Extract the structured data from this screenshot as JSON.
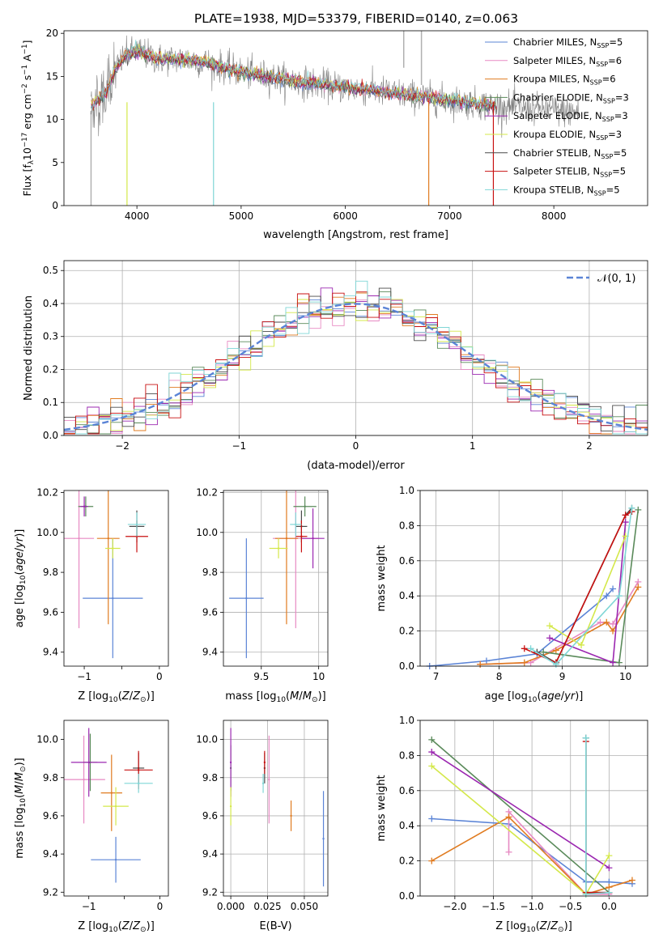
{
  "figure_title": "PLATE=1938, MJD=53379, FIBERID=0140, z=0.063",
  "colors": {
    "blue": "#5b84d6",
    "pink": "#e78ac3",
    "orange": "#e07b20",
    "green": "#5a8a5a",
    "purple": "#9b27b0",
    "lime": "#d4e84a",
    "dark": "#4a4a4a",
    "red": "#c81010",
    "cyan": "#7fd6d6",
    "data": "#808080",
    "normal": "#5b84d6"
  },
  "chart_data": [
    {
      "id": "spectrum",
      "type": "line",
      "xlabel": "wavelength [Angstrom, rest frame]",
      "ylabel": "Flux [fλ10⁻¹⁷ erg cm⁻² s⁻¹ A⁻¹]",
      "xlim": [
        3300,
        8900
      ],
      "ylim": [
        0,
        20.3
      ],
      "xticks": [
        4000,
        5000,
        6000,
        7000,
        8000
      ],
      "yticks": [
        0,
        5,
        10,
        15,
        20
      ],
      "grid": false,
      "legend_position": "top-right",
      "legend": [
        {
          "name": "Chabrier MILES, N_SSP=5",
          "color": "#5b84d6"
        },
        {
          "name": "Salpeter MILES, N_SSP=6",
          "color": "#e78ac3"
        },
        {
          "name": "Kroupa MILES, N_SSP=6",
          "color": "#e07b20"
        },
        {
          "name": "Chabrier ELODIE, N_SSP=3",
          "color": "#5a8a5a"
        },
        {
          "name": "Salpeter ELODIE, N_SSP=3",
          "color": "#9b27b0"
        },
        {
          "name": "Kroupa ELODIE, N_SSP=3",
          "color": "#d4e84a"
        },
        {
          "name": "Chabrier STELIB, N_SSP=5",
          "color": "#4a4a4a"
        },
        {
          "name": "Salpeter STELIB, N_SSP=5",
          "color": "#c81010"
        },
        {
          "name": "Kroupa STELIB, N_SSP=5",
          "color": "#7fd6d6"
        }
      ],
      "continuum": [
        [
          3560,
          11.5
        ],
        [
          3700,
          13
        ],
        [
          3800,
          16
        ],
        [
          3900,
          17.5
        ],
        [
          4000,
          18
        ],
        [
          4100,
          17.5
        ],
        [
          4200,
          17
        ],
        [
          4300,
          17
        ],
        [
          4500,
          17
        ],
        [
          4700,
          16.5
        ],
        [
          5000,
          15.5
        ],
        [
          5500,
          14.5
        ],
        [
          6000,
          13.7
        ],
        [
          6500,
          13
        ],
        [
          7000,
          12.2
        ],
        [
          7500,
          11.5
        ],
        [
          8000,
          11.1
        ],
        [
          8250,
          10.8
        ]
      ]
    },
    {
      "id": "residuals",
      "type": "line",
      "xlabel": "(data-model)/error",
      "ylabel": "Normed distribution",
      "xlim": [
        -2.5,
        2.5
      ],
      "ylim": [
        0,
        0.53
      ],
      "xticks": [
        -2,
        -1,
        0,
        1,
        2
      ],
      "yticks": [
        0.0,
        0.1,
        0.2,
        0.3,
        0.4,
        0.5
      ],
      "grid": true,
      "legend_position": "top-right",
      "legend": [
        {
          "name": "𝒩(0, 1)",
          "color": "#5b84d6"
        }
      ],
      "normal": {
        "mean": 0,
        "sigma": 1
      }
    },
    {
      "id": "age_vs_Z",
      "type": "scatter",
      "xlabel": "Z [log₁₀(Z/Z⊙)]",
      "ylabel": "age  [log₁₀(age/yr)]",
      "xlim": [
        -1.27,
        0.12
      ],
      "ylim": [
        9.33,
        10.21
      ],
      "xticks": [
        -1,
        -0.5,
        0
      ],
      "xticklabels": [
        "−1",
        "",
        "0"
      ],
      "yticks": [
        9.4,
        9.6,
        9.8,
        10.0,
        10.2
      ],
      "grid": false,
      "points": [
        {
          "series": "Chabrier MILES",
          "x": -0.62,
          "y": 9.67,
          "xerr": 0.4,
          "yerr": 0.3,
          "color": "#5b84d6"
        },
        {
          "series": "Salpeter MILES",
          "x": -1.07,
          "y": 9.97,
          "xerr": 0.2,
          "yerr": 0.45,
          "color": "#e78ac3"
        },
        {
          "series": "Kroupa MILES",
          "x": -0.68,
          "y": 9.97,
          "xerr": 0.15,
          "yerr": 0.43,
          "color": "#e07b20"
        },
        {
          "series": "Chabrier ELODIE",
          "x": -0.98,
          "y": 10.13,
          "xerr": 0.1,
          "yerr": 0.05,
          "color": "#5a8a5a"
        },
        {
          "series": "Salpeter ELODIE",
          "x": -1.0,
          "y": 10.13,
          "xerr": 0.05,
          "yerr": 0.05,
          "color": "#9b27b0"
        },
        {
          "series": "Kroupa ELODIE",
          "x": -0.62,
          "y": 9.92,
          "xerr": 0.1,
          "yerr": 0.05,
          "color": "#d4e84a"
        },
        {
          "series": "Chabrier STELIB",
          "x": -0.3,
          "y": 10.03,
          "xerr": 0.1,
          "yerr": 0.08,
          "color": "#4a4a4a"
        },
        {
          "series": "Salpeter STELIB",
          "x": -0.3,
          "y": 9.98,
          "xerr": 0.15,
          "yerr": 0.08,
          "color": "#c81010"
        },
        {
          "series": "Kroupa STELIB",
          "x": -0.3,
          "y": 10.04,
          "xerr": 0.12,
          "yerr": 0.06,
          "color": "#7fd6d6"
        }
      ]
    },
    {
      "id": "age_vs_mass",
      "type": "scatter",
      "xlabel": "mass [log₁₀(M/M⊙)]",
      "xlim": [
        9.17,
        10.08
      ],
      "ylim": [
        9.33,
        10.21
      ],
      "xticks": [
        9.5,
        10.0
      ],
      "yticks": [
        9.4,
        9.6,
        9.8,
        10.0,
        10.2
      ],
      "grid": true,
      "points": [
        {
          "series": "Chabrier MILES",
          "x": 9.37,
          "y": 9.67,
          "xerr": 0.15,
          "yerr": 0.3,
          "color": "#5b84d6"
        },
        {
          "series": "Salpeter MILES",
          "x": 9.8,
          "y": 9.97,
          "xerr": 0.2,
          "yerr": 0.45,
          "color": "#e78ac3"
        },
        {
          "series": "Kroupa MILES",
          "x": 9.72,
          "y": 9.97,
          "xerr": 0.1,
          "yerr": 0.43,
          "color": "#e07b20"
        },
        {
          "series": "Chabrier ELODIE",
          "x": 9.88,
          "y": 10.13,
          "xerr": 0.1,
          "yerr": 0.05,
          "color": "#5a8a5a"
        },
        {
          "series": "Salpeter ELODIE",
          "x": 9.95,
          "y": 9.97,
          "xerr": 0.1,
          "yerr": 0.15,
          "color": "#9b27b0"
        },
        {
          "series": "Kroupa ELODIE",
          "x": 9.65,
          "y": 9.92,
          "xerr": 0.08,
          "yerr": 0.05,
          "color": "#d4e84a"
        },
        {
          "series": "Chabrier STELIB",
          "x": 9.85,
          "y": 10.03,
          "xerr": 0.05,
          "yerr": 0.08,
          "color": "#4a4a4a"
        },
        {
          "series": "Salpeter STELIB",
          "x": 9.85,
          "y": 9.98,
          "xerr": 0.05,
          "yerr": 0.08,
          "color": "#c81010"
        },
        {
          "series": "Kroupa STELIB",
          "x": 9.8,
          "y": 10.04,
          "xerr": 0.05,
          "yerr": 0.06,
          "color": "#7fd6d6"
        }
      ]
    },
    {
      "id": "weight_vs_age",
      "type": "line",
      "xlabel": "age  [log₁₀(age/yr)]",
      "ylabel": "mass weight",
      "xlim": [
        6.75,
        10.35
      ],
      "ylim": [
        0,
        1
      ],
      "xticks": [
        7,
        8,
        9,
        10
      ],
      "yticks": [
        0.0,
        0.2,
        0.4,
        0.6,
        0.8,
        1.0
      ],
      "grid": true,
      "series": [
        {
          "name": "Chabrier MILES",
          "color": "#5b84d6",
          "x": [
            6.9,
            7.8,
            8.6,
            9.7,
            9.8
          ],
          "y": [
            0.0,
            0.03,
            0.07,
            0.4,
            0.44
          ]
        },
        {
          "name": "Salpeter MILES",
          "color": "#e78ac3",
          "x": [
            7.7,
            8.5,
            9.6,
            9.8,
            10.2
          ],
          "y": [
            0.01,
            0.02,
            0.25,
            0.24,
            0.48
          ]
        },
        {
          "name": "Kroupa MILES",
          "color": "#e07b20",
          "x": [
            7.7,
            8.4,
            8.9,
            9.7,
            9.8,
            10.2
          ],
          "y": [
            0.01,
            0.02,
            0.09,
            0.25,
            0.2,
            0.45
          ]
        },
        {
          "name": "Chabrier ELODIE",
          "color": "#5a8a5a",
          "x": [
            8.7,
            9.9,
            10.2
          ],
          "y": [
            0.08,
            0.02,
            0.89
          ]
        },
        {
          "name": "Salpeter ELODIE",
          "color": "#9b27b0",
          "x": [
            8.8,
            9.8,
            10.0
          ],
          "y": [
            0.16,
            0.02,
            0.82
          ]
        },
        {
          "name": "Kroupa ELODIE",
          "color": "#d4e84a",
          "x": [
            8.8,
            9.3,
            10.0
          ],
          "y": [
            0.23,
            0.12,
            0.74
          ]
        },
        {
          "name": "Chabrier STELIB",
          "color": "#4a4a4a",
          "x": [
            8.6,
            8.9,
            10.0,
            10.1
          ],
          "y": [
            0.08,
            0.02,
            0.86,
            0.9
          ]
        },
        {
          "name": "Salpeter STELIB",
          "color": "#c81010",
          "x": [
            8.4,
            8.9,
            10.0,
            10.1
          ],
          "y": [
            0.1,
            0.02,
            0.86,
            0.88
          ]
        },
        {
          "name": "Kroupa STELIB",
          "color": "#7fd6d6",
          "x": [
            8.5,
            8.9,
            9.9,
            10.1
          ],
          "y": [
            0.1,
            0.01,
            0.4,
            0.9
          ]
        }
      ]
    },
    {
      "id": "mass_vs_Z",
      "type": "scatter",
      "xlabel": "Z [log₁₀(Z/Z⊙)]",
      "ylabel": "mass [log₁₀(M/M⊙)]",
      "xlim": [
        -1.35,
        0.12
      ],
      "ylim": [
        9.18,
        10.1
      ],
      "xticks": [
        -1,
        -0.5,
        0
      ],
      "xticklabels": [
        "−1",
        "",
        "0"
      ],
      "yticks": [
        9.2,
        9.4,
        9.6,
        9.8,
        10.0
      ],
      "grid": false,
      "points": [
        {
          "series": "Chabrier MILES",
          "x": -0.62,
          "y": 9.37,
          "xerr": 0.35,
          "yerr": 0.12,
          "color": "#5b84d6"
        },
        {
          "series": "Salpeter MILES",
          "x": -1.07,
          "y": 9.79,
          "xerr": 0.3,
          "yerr": 0.23,
          "color": "#e78ac3"
        },
        {
          "series": "Kroupa MILES",
          "x": -0.68,
          "y": 9.72,
          "xerr": 0.15,
          "yerr": 0.2,
          "color": "#e07b20"
        },
        {
          "series": "Chabrier ELODIE",
          "x": -0.98,
          "y": 9.88,
          "xerr": 0.1,
          "yerr": 0.15,
          "color": "#5a8a5a"
        },
        {
          "series": "Salpeter ELODIE",
          "x": -1.0,
          "y": 9.88,
          "xerr": 0.25,
          "yerr": 0.18,
          "color": "#9b27b0"
        },
        {
          "series": "Kroupa ELODIE",
          "x": -0.62,
          "y": 9.65,
          "xerr": 0.18,
          "yerr": 0.1,
          "color": "#d4e84a"
        },
        {
          "series": "Chabrier STELIB",
          "x": -0.3,
          "y": 9.85,
          "xerr": 0.08,
          "yerr": 0.08,
          "color": "#4a4a4a"
        },
        {
          "series": "Salpeter STELIB",
          "x": -0.3,
          "y": 9.84,
          "xerr": 0.2,
          "yerr": 0.1,
          "color": "#c81010"
        },
        {
          "series": "Kroupa STELIB",
          "x": -0.3,
          "y": 9.77,
          "xerr": 0.2,
          "yerr": 0.05,
          "color": "#7fd6d6"
        }
      ]
    },
    {
      "id": "mass_vs_EBV",
      "type": "scatter",
      "xlabel": "E(B-V)",
      "xlim": [
        -0.005,
        0.066
      ],
      "ylim": [
        9.18,
        10.1
      ],
      "xticks": [
        0.0,
        0.025,
        0.05
      ],
      "xticklabels": [
        "0.000",
        "0.025",
        "0.050"
      ],
      "yticks": [
        9.2,
        9.4,
        9.6,
        9.8,
        10.0
      ],
      "grid": true,
      "points": [
        {
          "series": "Chabrier MILES",
          "x": 0.063,
          "y": 9.48,
          "xerr": 0,
          "yerr": 0.25,
          "color": "#5b84d6"
        },
        {
          "series": "Salpeter MILES",
          "x": 0.026,
          "y": 9.79,
          "xerr": 0,
          "yerr": 0.23,
          "color": "#e78ac3"
        },
        {
          "series": "Kroupa MILES",
          "x": 0.041,
          "y": 9.6,
          "xerr": 0,
          "yerr": 0.08,
          "color": "#e07b20"
        },
        {
          "series": "Chabrier ELODIE",
          "x": 0.0,
          "y": 9.85,
          "xerr": 0,
          "yerr": 0.12,
          "color": "#5a8a5a"
        },
        {
          "series": "Salpeter ELODIE",
          "x": 0.0,
          "y": 9.88,
          "xerr": 0,
          "yerr": 0.18,
          "color": "#9b27b0"
        },
        {
          "series": "Kroupa ELODIE",
          "x": 0.0,
          "y": 9.65,
          "xerr": 0,
          "yerr": 0.1,
          "color": "#d4e84a"
        },
        {
          "series": "Chabrier STELIB",
          "x": 0.023,
          "y": 9.85,
          "xerr": 0,
          "yerr": 0.08,
          "color": "#4a4a4a"
        },
        {
          "series": "Salpeter STELIB",
          "x": 0.023,
          "y": 9.88,
          "xerr": 0,
          "yerr": 0.06,
          "color": "#c81010"
        },
        {
          "series": "Kroupa STELIB",
          "x": 0.022,
          "y": 9.77,
          "xerr": 0,
          "yerr": 0.05,
          "color": "#7fd6d6"
        }
      ]
    },
    {
      "id": "weight_vs_Z",
      "type": "line",
      "xlabel": "Z [log₁₀(Z/Z⊙)]",
      "ylabel": "mass weight",
      "xlim": [
        -2.45,
        0.5
      ],
      "ylim": [
        0,
        1
      ],
      "xticks": [
        -2.0,
        -1.5,
        -1.0,
        -0.5,
        0.0
      ],
      "yticks": [
        0.0,
        0.2,
        0.4,
        0.6,
        0.8,
        1.0
      ],
      "grid": true,
      "series": [
        {
          "name": "Chabrier MILES",
          "color": "#5b84d6",
          "x": [
            -2.3,
            -1.3,
            -0.3,
            0.0,
            0.3
          ],
          "y": [
            0.44,
            0.41,
            0.08,
            0.08,
            0.07
          ]
        },
        {
          "name": "Salpeter MILES",
          "color": "#e78ac3",
          "x": [
            -1.3,
            -1.3,
            -0.3,
            0.0
          ],
          "y": [
            0.25,
            0.48,
            0.01,
            0.01
          ]
        },
        {
          "name": "Kroupa MILES",
          "color": "#e07b20",
          "x": [
            -2.3,
            -1.3,
            -0.3,
            0.0,
            0.3
          ],
          "y": [
            0.2,
            0.45,
            0.01,
            0.05,
            0.09
          ]
        },
        {
          "name": "Chabrier ELODIE",
          "color": "#5a8a5a",
          "x": [
            -2.3,
            0.0
          ],
          "y": [
            0.89,
            0.02
          ]
        },
        {
          "name": "Salpeter ELODIE",
          "color": "#9b27b0",
          "x": [
            -2.3,
            0.0
          ],
          "y": [
            0.82,
            0.16
          ]
        },
        {
          "name": "Kroupa ELODIE",
          "color": "#d4e84a",
          "x": [
            -2.3,
            -0.3,
            0.0
          ],
          "y": [
            0.74,
            0.01,
            0.23
          ]
        },
        {
          "name": "Chabrier STELIB",
          "color": "#4a4a4a",
          "x": [
            -0.3,
            -0.3,
            0.0
          ],
          "y": [
            0.9,
            0.02,
            0.02
          ]
        },
        {
          "name": "Salpeter STELIB",
          "color": "#c81010",
          "x": [
            -0.3,
            -0.3,
            0.0
          ],
          "y": [
            0.88,
            0.02,
            0.02
          ]
        },
        {
          "name": "Kroupa STELIB",
          "color": "#7fd6d6",
          "x": [
            -0.3,
            -0.3,
            0.0
          ],
          "y": [
            0.9,
            0.01,
            0.02
          ]
        }
      ]
    }
  ]
}
